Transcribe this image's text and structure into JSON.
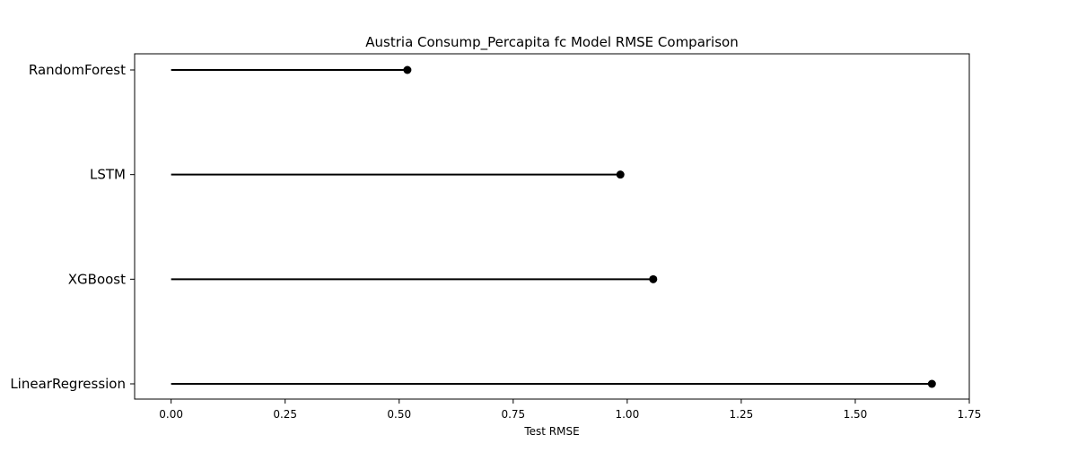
{
  "chart_data": {
    "type": "lollipop",
    "title": "Austria Consump_Percapita fc Model RMSE Comparison",
    "xlabel": "Test RMSE",
    "ylabel": "",
    "categories": [
      "RandomForest",
      "LSTM",
      "XGBoost",
      "LinearRegression"
    ],
    "values": [
      0.518,
      0.985,
      1.057,
      1.668
    ],
    "xlim": [
      -0.08,
      1.75
    ],
    "xticks": [
      0.0,
      0.25,
      0.5,
      0.75,
      1.0,
      1.25,
      1.5,
      1.75
    ],
    "xtick_labels": [
      "0.00",
      "0.25",
      "0.50",
      "0.75",
      "1.00",
      "1.25",
      "1.50",
      "1.75"
    ],
    "grid": false,
    "color": "#000000"
  }
}
